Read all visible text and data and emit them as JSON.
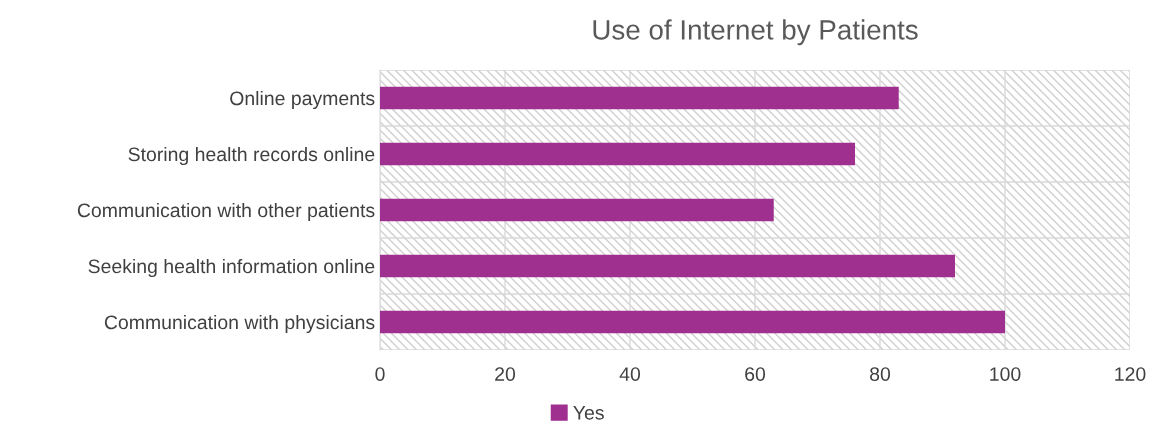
{
  "chart_data": {
    "type": "bar",
    "orientation": "horizontal",
    "title": "Use of Internet by Patients",
    "categories": [
      "Online payments",
      "Storing health records online",
      "Communication with other patients",
      "Seeking health information online",
      "Communication with physicians"
    ],
    "series": [
      {
        "name": "Yes",
        "color": "#a0308f",
        "values": [
          83,
          76,
          63,
          92,
          100
        ]
      }
    ],
    "xlim": [
      0,
      120
    ],
    "xticks": [
      0,
      20,
      40,
      60,
      80,
      100,
      120
    ],
    "grid": true,
    "legend": "bottom"
  }
}
